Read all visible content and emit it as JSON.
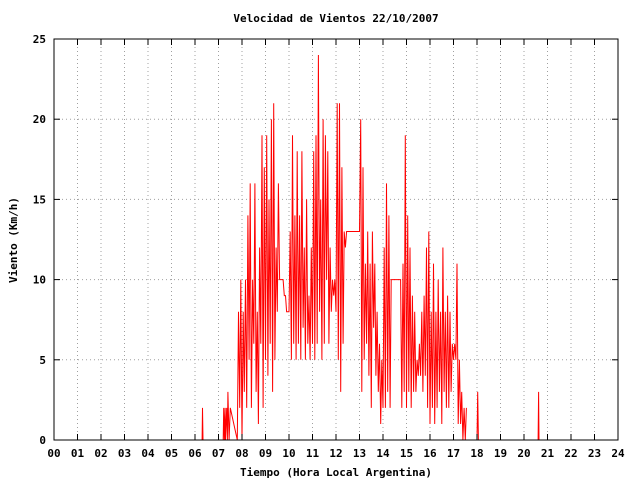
{
  "chart_data": {
    "type": "line",
    "title": "Velocidad de Vientos 22/10/2007",
    "xlabel": "Tiempo (Hora Local Argentina)",
    "ylabel": "Viento (Km/h)",
    "x_tick_labels": [
      "00",
      "01",
      "02",
      "03",
      "04",
      "05",
      "06",
      "07",
      "08",
      "09",
      "10",
      "11",
      "12",
      "13",
      "14",
      "15",
      "16",
      "17",
      "18",
      "19",
      "20",
      "21",
      "22",
      "23",
      "24"
    ],
    "y_tick_labels": [
      "0",
      "5",
      "10",
      "15",
      "20",
      "25"
    ],
    "xlim": [
      0,
      24
    ],
    "ylim": [
      0,
      25
    ],
    "grid": true,
    "line_color": "#ff0000",
    "series": [
      {
        "values_note_free": true,
        "x": [
          6.3,
          6.32,
          6.34,
          7.2,
          7.22,
          7.25,
          7.28,
          7.3,
          7.35,
          7.38,
          7.4,
          7.45,
          7.5,
          7.8,
          7.85,
          7.9,
          7.95,
          8.0,
          8.05,
          8.1,
          8.15,
          8.2,
          8.25,
          8.3,
          8.35,
          8.4,
          8.45,
          8.5,
          8.55,
          8.6,
          8.65,
          8.7,
          8.75,
          8.8,
          8.85,
          8.9,
          8.95,
          9.0,
          9.05,
          9.1,
          9.15,
          9.2,
          9.25,
          9.3,
          9.35,
          9.4,
          9.45,
          9.5,
          9.55,
          9.6,
          9.65,
          9.7,
          9.75,
          9.8,
          9.85,
          9.9,
          9.95,
          10.0,
          10.05,
          10.1,
          10.15,
          10.2,
          10.25,
          10.3,
          10.35,
          10.4,
          10.45,
          10.5,
          10.55,
          10.6,
          10.65,
          10.7,
          10.75,
          10.8,
          10.85,
          10.9,
          10.95,
          11.0,
          11.05,
          11.1,
          11.15,
          11.2,
          11.25,
          11.3,
          11.35,
          11.4,
          11.45,
          11.5,
          11.55,
          11.6,
          11.65,
          11.7,
          11.75,
          11.8,
          11.85,
          11.9,
          11.95,
          12.0,
          12.05,
          12.1,
          12.15,
          12.2,
          12.25,
          12.3,
          12.35,
          12.4,
          12.45,
          12.5,
          12.55,
          12.6,
          12.65,
          12.7,
          12.75,
          12.8,
          12.85,
          12.9,
          12.95,
          13.0,
          13.05,
          13.1,
          13.15,
          13.2,
          13.25,
          13.3,
          13.35,
          13.4,
          13.45,
          13.5,
          13.55,
          13.6,
          13.65,
          13.7,
          13.75,
          13.8,
          13.85,
          13.9,
          13.95,
          14.0,
          14.05,
          14.1,
          14.15,
          14.2,
          14.25,
          14.3,
          14.35,
          14.4,
          14.45,
          14.5,
          14.55,
          14.6,
          14.65,
          14.7,
          14.75,
          14.8,
          14.85,
          14.9,
          14.95,
          15.0,
          15.05,
          15.1,
          15.15,
          15.2,
          15.25,
          15.3,
          15.35,
          15.4,
          15.45,
          15.5,
          15.55,
          15.6,
          15.65,
          15.7,
          15.75,
          15.8,
          15.85,
          15.9,
          15.95,
          16.0,
          16.05,
          16.1,
          16.15,
          16.2,
          16.25,
          16.3,
          16.35,
          16.4,
          16.45,
          16.5,
          16.55,
          16.6,
          16.65,
          16.7,
          16.75,
          16.8,
          16.85,
          16.9,
          16.95,
          17.0,
          17.05,
          17.1,
          17.15,
          17.2,
          17.25,
          17.3,
          17.35,
          17.4,
          17.45,
          17.5,
          17.55,
          18.0,
          18.03,
          18.06,
          20.6,
          20.62,
          20.64
        ],
        "y": [
          0,
          2,
          0,
          0,
          2,
          0,
          2,
          0,
          2,
          0,
          3,
          0,
          2,
          0,
          8,
          2,
          10,
          0,
          8,
          3,
          10,
          2,
          14,
          5,
          16,
          2,
          10,
          6,
          16,
          3,
          8,
          1,
          12,
          6,
          19,
          2,
          17,
          5,
          19,
          4,
          15,
          6,
          20,
          3,
          21,
          5,
          12,
          8,
          16,
          10,
          10,
          10,
          10,
          9,
          9,
          8,
          8,
          8,
          13,
          5,
          19,
          6,
          14,
          5,
          18,
          6,
          14,
          5,
          18,
          7,
          12,
          5,
          15,
          6,
          9,
          5,
          12,
          6,
          18,
          5,
          19,
          6,
          24,
          8,
          15,
          5,
          20,
          6,
          19,
          10,
          18,
          6,
          12,
          8,
          10,
          9,
          10,
          8,
          21,
          5,
          21,
          3,
          17,
          6,
          13,
          12,
          13,
          13,
          13,
          13,
          13,
          13,
          13,
          13,
          13,
          13,
          13,
          13,
          20,
          3,
          17,
          5,
          11,
          6,
          13,
          4,
          11,
          2,
          13,
          7,
          11,
          4,
          8,
          3,
          6,
          1,
          5,
          2,
          12,
          2,
          16,
          3,
          14,
          2,
          10,
          10,
          10,
          10,
          10,
          10,
          10,
          10,
          10,
          2,
          11,
          3,
          19,
          2,
          14,
          3,
          12,
          2,
          9,
          3,
          8,
          3,
          5,
          4,
          6,
          4,
          8,
          3,
          9,
          4,
          12,
          2,
          13,
          1,
          8,
          2,
          11,
          1,
          8,
          2,
          10,
          3,
          8,
          1,
          12,
          3,
          8,
          2,
          9,
          2,
          8,
          3,
          6,
          5,
          6,
          5,
          11,
          1,
          5,
          1,
          3,
          0,
          2,
          0,
          2,
          0,
          3,
          0,
          0,
          3,
          0
        ]
      }
    ]
  }
}
